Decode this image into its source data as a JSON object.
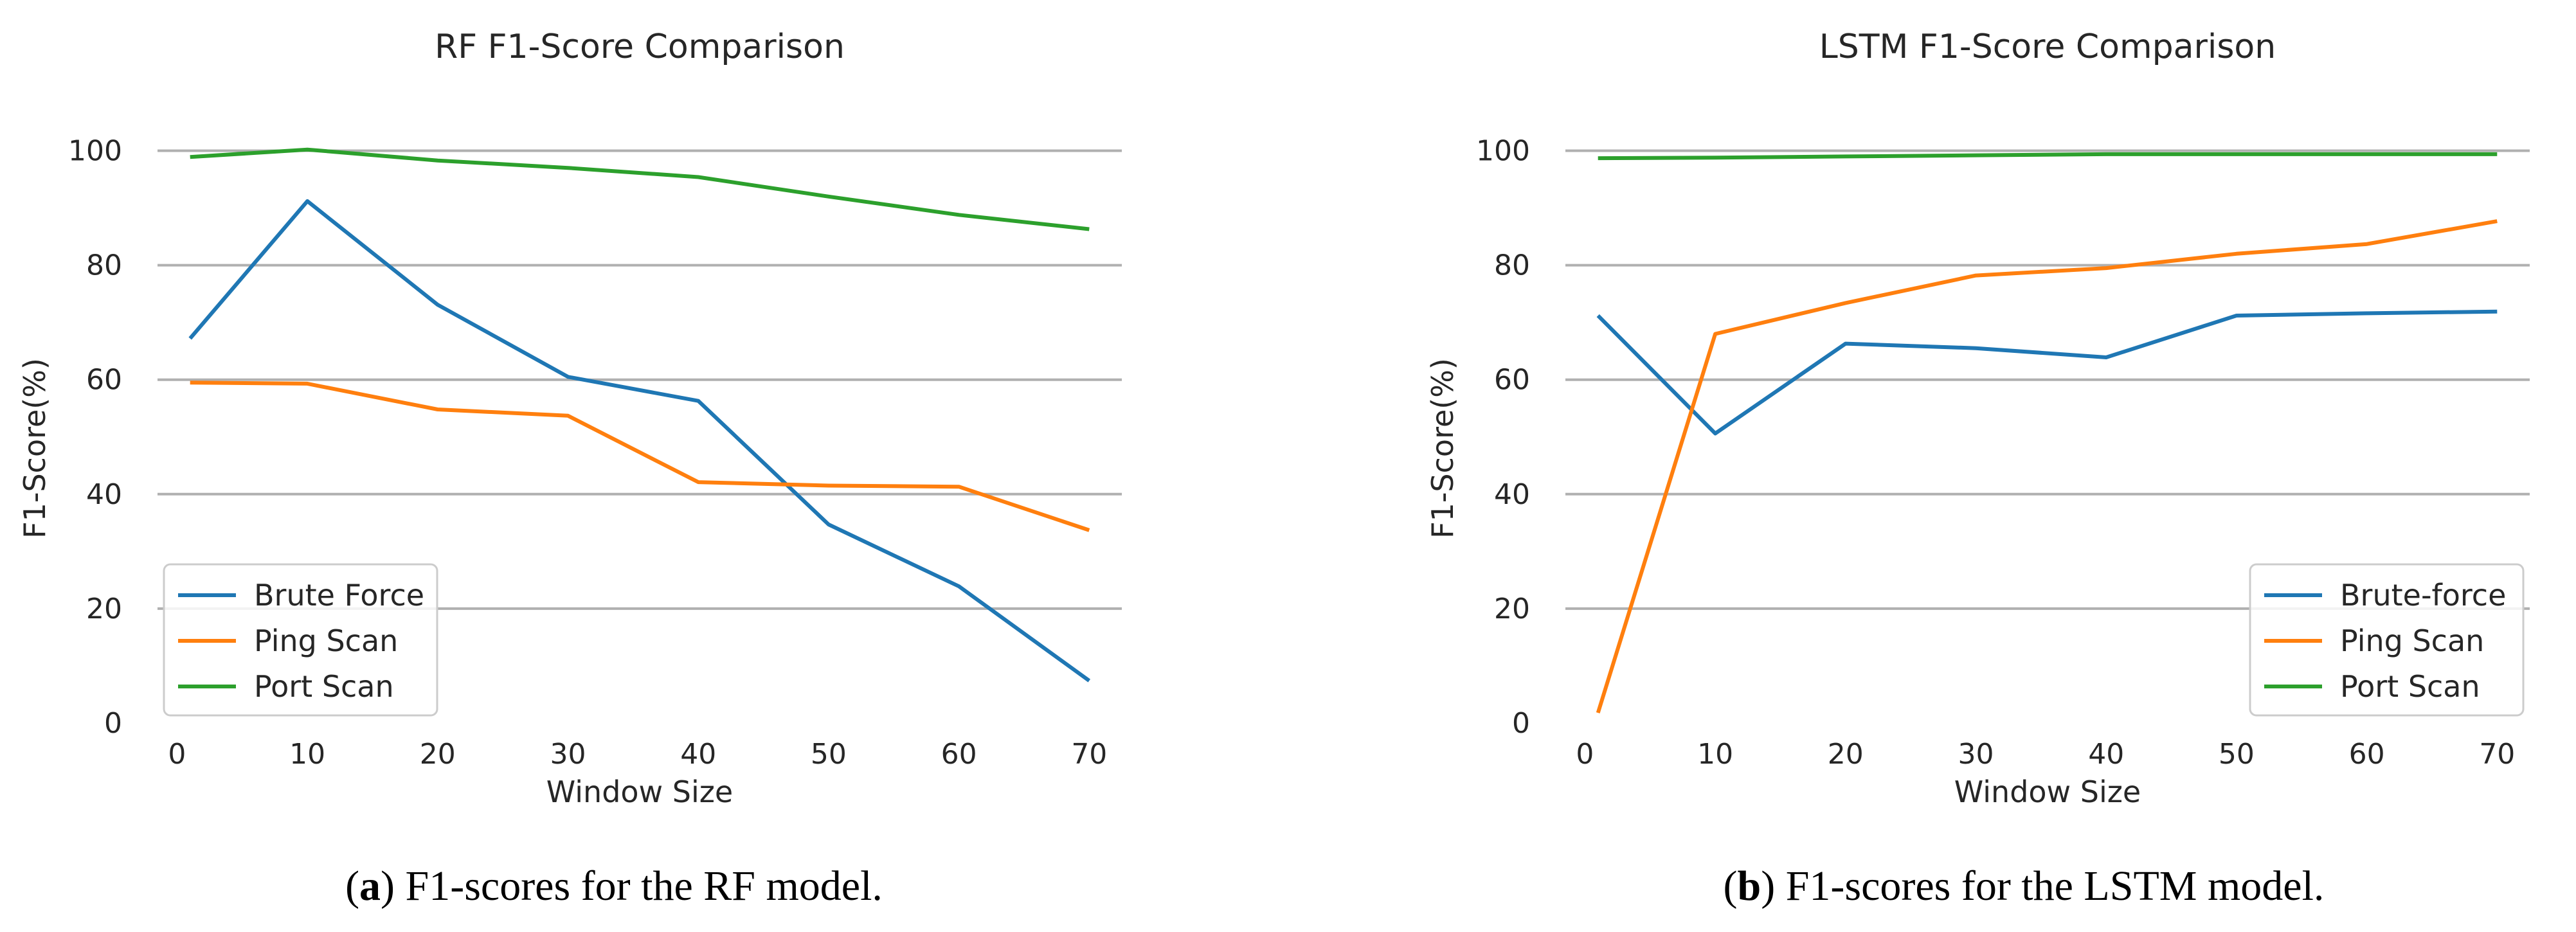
{
  "chart_data": [
    {
      "type": "line",
      "title": "RF F1-Score Comparison",
      "xlabel": "Window Size",
      "ylabel": "F1-Score(%)",
      "xlim": [
        -1.5,
        72.5
      ],
      "ylim": [
        0,
        105
      ],
      "xticks": [
        0,
        10,
        20,
        30,
        40,
        50,
        60,
        70
      ],
      "yticks": [
        0,
        20,
        40,
        60,
        80,
        100
      ],
      "grid": "horizontal",
      "legend_position": "lower-left",
      "x": [
        1,
        10,
        20,
        30,
        40,
        50,
        60,
        70
      ],
      "series": [
        {
          "name": "Brute Force",
          "color": "#1f77b4",
          "values": [
            67.2,
            91.2,
            73.1,
            60.5,
            56.3,
            34.7,
            23.9,
            7.4
          ]
        },
        {
          "name": "Ping Scan",
          "color": "#ff7f0e",
          "values": [
            59.5,
            59.3,
            54.8,
            53.7,
            42.1,
            41.5,
            41.3,
            33.7
          ]
        },
        {
          "name": "Port Scan",
          "color": "#2ca02c",
          "values": [
            98.9,
            100.2,
            98.3,
            97.0,
            95.4,
            92.0,
            88.8,
            86.3
          ]
        }
      ],
      "caption_letter": "a",
      "caption_rest": "F1-scores for the RF model."
    },
    {
      "type": "line",
      "title": "LSTM F1-Score Comparison",
      "xlabel": "Window Size",
      "ylabel": "F1-Score(%)",
      "xlim": [
        -1.5,
        72.5
      ],
      "ylim": [
        0,
        105
      ],
      "xticks": [
        0,
        10,
        20,
        30,
        40,
        50,
        60,
        70
      ],
      "yticks": [
        0,
        20,
        40,
        60,
        80,
        100
      ],
      "grid": "horizontal",
      "legend_position": "lower-right",
      "x": [
        1,
        10,
        20,
        30,
        40,
        50,
        60,
        70
      ],
      "series": [
        {
          "name": "Brute-force",
          "color": "#1f77b4",
          "values": [
            71.2,
            50.6,
            66.3,
            65.5,
            63.9,
            71.2,
            71.6,
            71.9
          ]
        },
        {
          "name": "Ping Scan",
          "color": "#ff7f0e",
          "values": [
            1.8,
            68.0,
            73.4,
            78.2,
            79.5,
            82.0,
            83.7,
            87.7
          ]
        },
        {
          "name": "Port Scan",
          "color": "#2ca02c",
          "values": [
            98.7,
            98.8,
            99.0,
            99.2,
            99.4,
            99.4,
            99.4,
            99.4
          ]
        }
      ],
      "caption_letter": "b",
      "caption_rest": "F1-scores for the LSTM model."
    }
  ]
}
